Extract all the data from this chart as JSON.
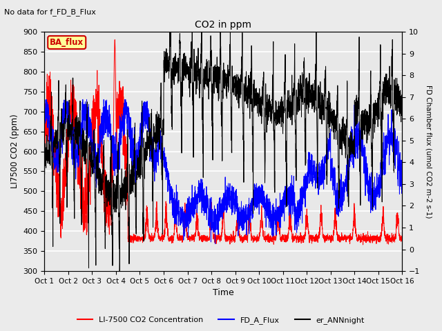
{
  "title": "CO2 in ppm",
  "subtitle": "No data for f_FD_B_Flux",
  "xlabel": "Time",
  "ylabel_left": "LI7500 CO2 (ppm)",
  "ylabel_right": "FD Chamber flux (umol CO2 m-2 s-1)",
  "ylim_left": [
    300,
    900
  ],
  "ylim_right": [
    -1.0,
    10.0
  ],
  "yticks_left": [
    300,
    350,
    400,
    450,
    500,
    550,
    600,
    650,
    700,
    750,
    800,
    850,
    900
  ],
  "yticks_right": [
    -1.0,
    0.0,
    1.0,
    2.0,
    3.0,
    4.0,
    5.0,
    6.0,
    7.0,
    8.0,
    9.0,
    10.0
  ],
  "xtick_labels": [
    "Oct 1",
    "Oct 2",
    "Oct 3",
    "Oct 4",
    "Oct 5",
    "Oct 6",
    "Oct 7",
    "Oct 8",
    "Oct 9",
    "Oct 10",
    "Oct 11",
    "Oct 12",
    "Oct 13",
    "Oct 14",
    "Oct 15",
    "Oct 16"
  ],
  "background_color": "#ebebeb",
  "plot_bg_color": "#e8e8e8",
  "grid_color": "#ffffff",
  "line_colors": {
    "red": "#ff0000",
    "blue": "#0000ff",
    "black": "#000000"
  },
  "legend_items": [
    {
      "label": "LI-7500 CO2 Concentration",
      "color": "#ff0000"
    },
    {
      "label": "FD_A_Flux",
      "color": "#0000ff"
    },
    {
      "label": "er_ANNnight",
      "color": "#000000"
    }
  ],
  "ba_flux_box": {
    "text": "BA_flux",
    "facecolor": "#ffff99",
    "edgecolor": "#cc0000",
    "textcolor": "#cc0000"
  },
  "figsize": [
    6.4,
    4.8
  ],
  "dpi": 100
}
